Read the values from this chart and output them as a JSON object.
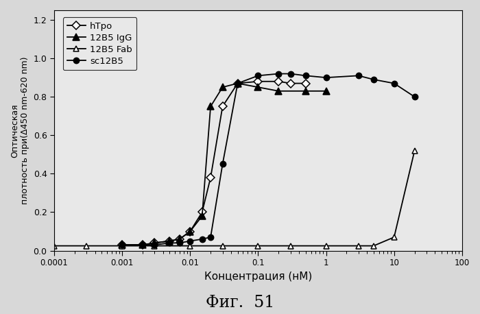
{
  "title": "Фиг.  51",
  "xlabel": "Концентрация (нМ)",
  "ylabel": "Оптическая\nплотность при(Δ450 nm-620 nm)",
  "xlim": [
    0.0001,
    100
  ],
  "ylim": [
    0.0,
    1.25
  ],
  "yticks": [
    0.0,
    0.2,
    0.4,
    0.6,
    0.8,
    1.0,
    1.2
  ],
  "hTpo_x": [
    0.001,
    0.002,
    0.003,
    0.005,
    0.007,
    0.01,
    0.015,
    0.02,
    0.03,
    0.05,
    0.1,
    0.2,
    0.3,
    0.5
  ],
  "hTpo_y": [
    0.03,
    0.03,
    0.04,
    0.05,
    0.06,
    0.1,
    0.2,
    0.38,
    0.75,
    0.87,
    0.88,
    0.88,
    0.87,
    0.87
  ],
  "igG_x": [
    0.001,
    0.002,
    0.003,
    0.005,
    0.007,
    0.01,
    0.015,
    0.02,
    0.03,
    0.05,
    0.1,
    0.2,
    0.5,
    1.0
  ],
  "igG_y": [
    0.03,
    0.03,
    0.04,
    0.05,
    0.06,
    0.1,
    0.18,
    0.75,
    0.85,
    0.87,
    0.85,
    0.83,
    0.83,
    0.83
  ],
  "fab_x": [
    0.0001,
    0.0003,
    0.001,
    0.003,
    0.01,
    0.03,
    0.1,
    0.3,
    1.0,
    3.0,
    5.0,
    10.0,
    20.0
  ],
  "fab_y": [
    0.025,
    0.025,
    0.025,
    0.025,
    0.025,
    0.025,
    0.025,
    0.025,
    0.025,
    0.025,
    0.025,
    0.07,
    0.52
  ],
  "sc_x": [
    0.001,
    0.002,
    0.003,
    0.005,
    0.007,
    0.01,
    0.015,
    0.02,
    0.03,
    0.05,
    0.1,
    0.2,
    0.3,
    0.5,
    1.0,
    3.0,
    5.0,
    10.0,
    20.0
  ],
  "sc_y": [
    0.03,
    0.03,
    0.03,
    0.04,
    0.04,
    0.05,
    0.06,
    0.07,
    0.45,
    0.87,
    0.91,
    0.92,
    0.92,
    0.91,
    0.9,
    0.91,
    0.89,
    0.87,
    0.8
  ],
  "background_color": "#e8e8e8",
  "figure_title": "Фиг.  51"
}
